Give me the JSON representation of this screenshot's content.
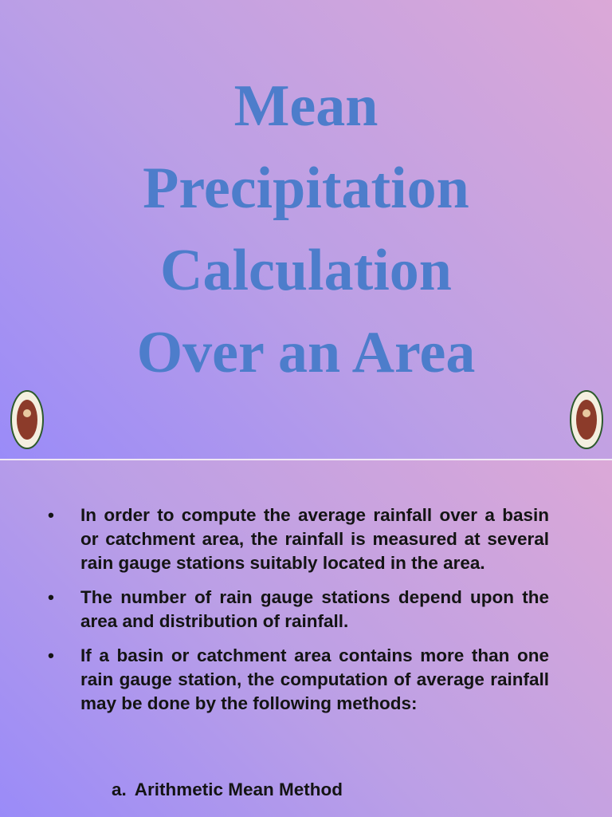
{
  "slides": [
    {
      "title_lines": [
        "Mean",
        "Precipitation",
        "Calculation",
        "Over an Area"
      ]
    },
    {
      "bullets": [
        "In order to compute the average rainfall over a basin or catchment area, the rainfall is measured at several rain gauge stations suitably located in the area.",
        "The number of rain gauge stations depend upon the area and distribution of rainfall.",
        "If a basin or catchment area contains more than one rain gauge station, the computation of average rainfall may be done by the following methods:"
      ],
      "methods": [
        {
          "marker": "a.",
          "text": "Arithmetic Mean Method"
        }
      ]
    }
  ]
}
